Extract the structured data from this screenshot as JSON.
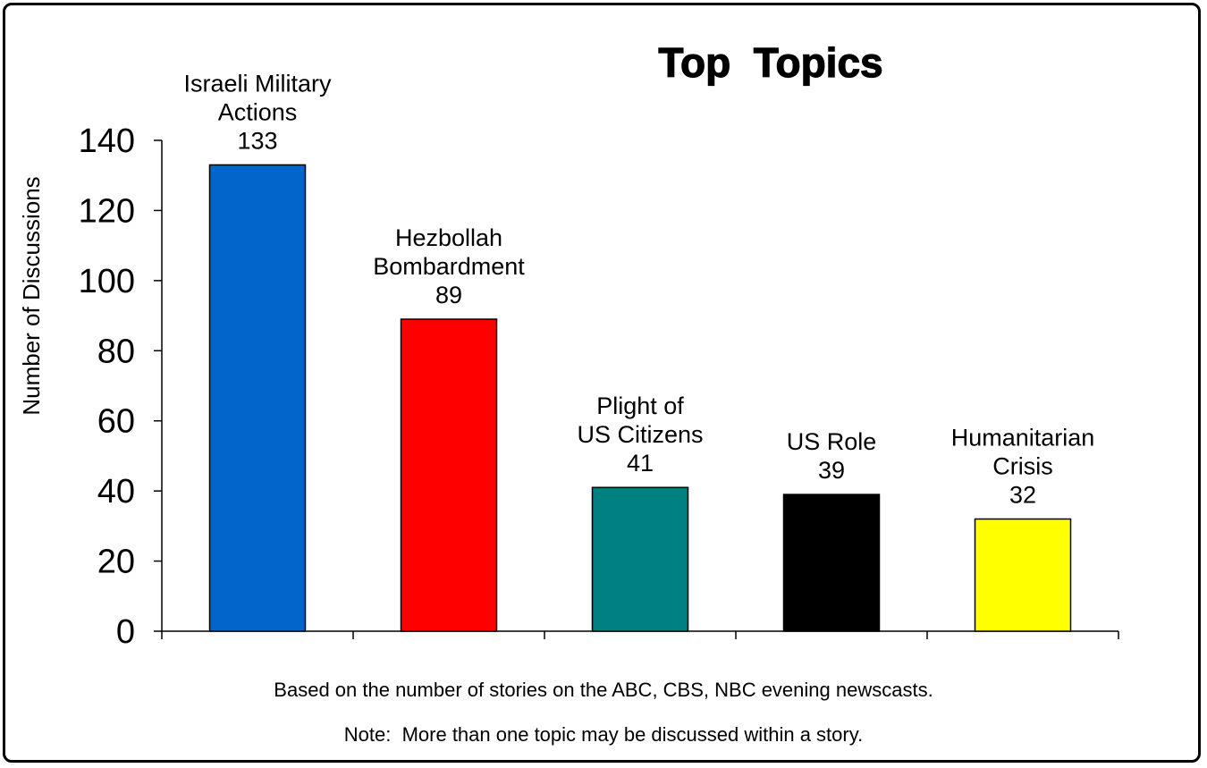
{
  "chart_data": {
    "type": "bar",
    "title": "Top  Topics",
    "ylabel": "Number of Discussions",
    "xlabel": "",
    "ylim": [
      0,
      140
    ],
    "yticks": [
      0,
      20,
      40,
      60,
      80,
      100,
      120,
      140
    ],
    "grid": false,
    "legend": "none",
    "categories": [
      {
        "lines": [
          "Israeli Military",
          "Actions"
        ],
        "value": 133,
        "color": "#0066CC"
      },
      {
        "lines": [
          "Hezbollah",
          "Bombardment"
        ],
        "value": 89,
        "color": "#FF0000"
      },
      {
        "lines": [
          "Plight of",
          "US Citizens"
        ],
        "value": 41,
        "color": "#008080"
      },
      {
        "lines": [
          "US Role"
        ],
        "value": 39,
        "color": "#000000"
      },
      {
        "lines": [
          "Humanitarian",
          "Crisis"
        ],
        "value": 32,
        "color": "#FFFF00"
      }
    ],
    "footnotes": [
      "Based on the number of stories on the ABC, CBS, NBC evening newscasts.",
      "Note:  More than one topic may be discussed within a story."
    ]
  }
}
